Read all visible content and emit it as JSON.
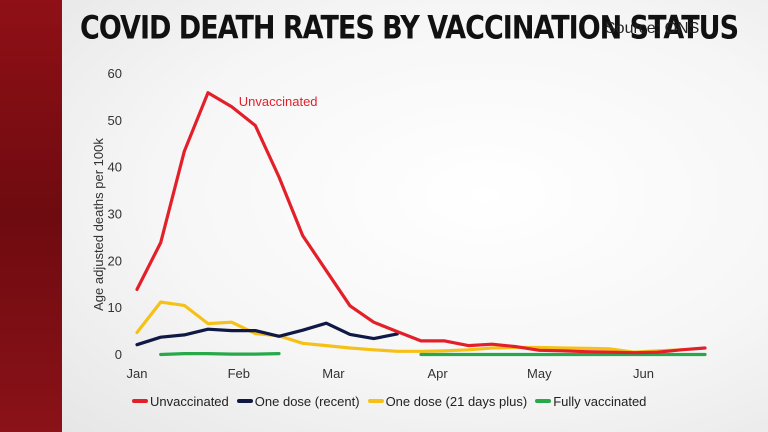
{
  "header": {
    "title": "COVID DEATH RATES BY VACCINATION STATUS",
    "source": "Source: ONS"
  },
  "chart_data": {
    "type": "line",
    "title": "COVID DEATH RATES BY VACCINATION STATUS",
    "xlabel": "",
    "ylabel": "Age adjusted deaths per 100k",
    "ylim": [
      0,
      60
    ],
    "yticks": [
      0,
      10,
      20,
      30,
      40,
      50,
      60
    ],
    "xlim": [
      0,
      24
    ],
    "xticks": [
      {
        "label": "Jan",
        "x": 0
      },
      {
        "label": "Feb",
        "x": 4.3
      },
      {
        "label": "Mar",
        "x": 8.3
      },
      {
        "label": "Apr",
        "x": 12.7
      },
      {
        "label": "May",
        "x": 17
      },
      {
        "label": "Jun",
        "x": 21.4
      }
    ],
    "grid": false,
    "legend_position": "bottom",
    "annotations": [
      {
        "text": "Unvaccinated",
        "series": "Unvaccinated",
        "x": 4.3,
        "y": 54
      }
    ],
    "series": [
      {
        "name": "Unvaccinated",
        "color": "#e3202a",
        "x": [
          0,
          1,
          2,
          3,
          4,
          5,
          6,
          7,
          8,
          9,
          10,
          11,
          12,
          13,
          14,
          15,
          16,
          17,
          18,
          19,
          20,
          21,
          22,
          23,
          24
        ],
        "y": [
          14,
          24,
          43.5,
          56,
          53,
          49,
          38,
          25.5,
          18,
          10.5,
          7,
          5,
          3,
          3,
          2,
          2.3,
          1.8,
          1,
          0.9,
          0.7,
          0.6,
          0.5,
          0.6,
          1.1,
          1.5
        ]
      },
      {
        "name": "One dose (recent)",
        "color": "#101845",
        "x": [
          0,
          1,
          2,
          3,
          4,
          5,
          6,
          7,
          8,
          9,
          10,
          11
        ],
        "y": [
          2.2,
          3.8,
          4.3,
          5.5,
          5.2,
          5.2,
          4,
          5.3,
          6.8,
          4.4,
          3.5,
          4.5
        ]
      },
      {
        "name": "One dose (21 days plus)",
        "color": "#f6c117",
        "x": [
          0,
          1,
          2,
          3,
          4,
          5,
          6,
          7,
          8,
          9,
          10,
          11,
          12,
          13,
          14,
          15,
          16,
          17,
          18,
          19,
          20,
          21,
          22,
          23
        ],
        "y": [
          4.8,
          11.3,
          10.6,
          6.7,
          7,
          4.6,
          4.1,
          2.5,
          2,
          1.5,
          1.1,
          0.8,
          0.8,
          0.9,
          1.1,
          1.5,
          1.6,
          1.6,
          1.5,
          1.4,
          1.3,
          0.6,
          0.9,
          1.1
        ]
      },
      {
        "name": "Fully vaccinated",
        "color": "#26a84b",
        "segments": [
          {
            "x": [
              1,
              2,
              3,
              4,
              5,
              6
            ],
            "y": [
              0.1,
              0.3,
              0.3,
              0.2,
              0.2,
              0.3
            ]
          },
          {
            "x": [
              12,
              13,
              14,
              15,
              16,
              17,
              18,
              19,
              20,
              21,
              22,
              23,
              24
            ],
            "y": [
              0.1,
              0.1,
              0.1,
              0.1,
              0.1,
              0.1,
              0.1,
              0.1,
              0.1,
              0.1,
              0.1,
              0.1,
              0.1
            ]
          }
        ]
      }
    ]
  }
}
